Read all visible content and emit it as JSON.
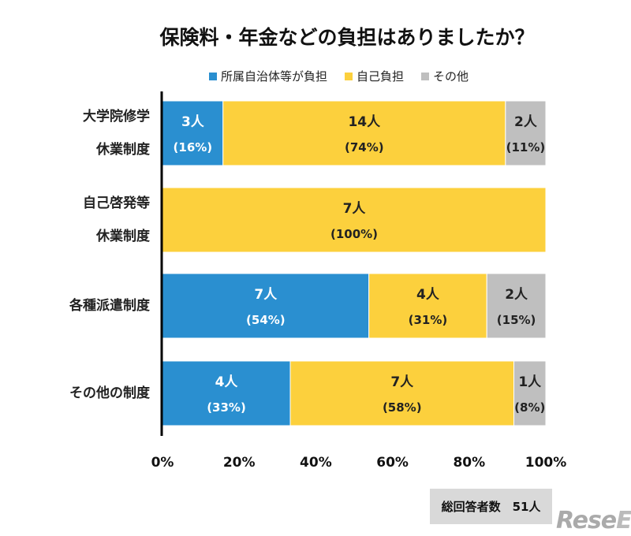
{
  "chart_data": {
    "type": "bar",
    "orientation": "horizontal-stacked-100",
    "title": "保険料・年金などの負担はありましたか？",
    "categories": [
      [
        "大学院修学",
        "休業制度"
      ],
      [
        "自己啓発等",
        "休業制度"
      ],
      [
        "各種派遣制度"
      ],
      [
        "その他の制度"
      ]
    ],
    "series": [
      {
        "name": "所属自治体等が負担",
        "color": "#2a8fd0",
        "values": [
          3,
          0,
          7,
          4
        ],
        "percent_labels": [
          "(16%)",
          "",
          "(54%)",
          "(33%)"
        ]
      },
      {
        "name": "自己負担",
        "color": "#fcd03d",
        "values": [
          14,
          7,
          4,
          7
        ],
        "percent_labels": [
          "(74%)",
          "(100%)",
          "(31%)",
          "(58%)"
        ]
      },
      {
        "name": "その他",
        "color": "#bfbfbf",
        "values": [
          2,
          0,
          2,
          1
        ],
        "percent_labels": [
          "(11%)",
          "",
          "(15%)",
          "(8%)"
        ]
      }
    ],
    "unit": "人",
    "xlim": [
      0,
      100
    ],
    "xticks": [
      "0%",
      "20%",
      "40%",
      "60%",
      "80%",
      "100%"
    ],
    "grid": false,
    "legend": "top"
  },
  "summary": "総回答者数　51人",
  "logo": "ReseEd"
}
